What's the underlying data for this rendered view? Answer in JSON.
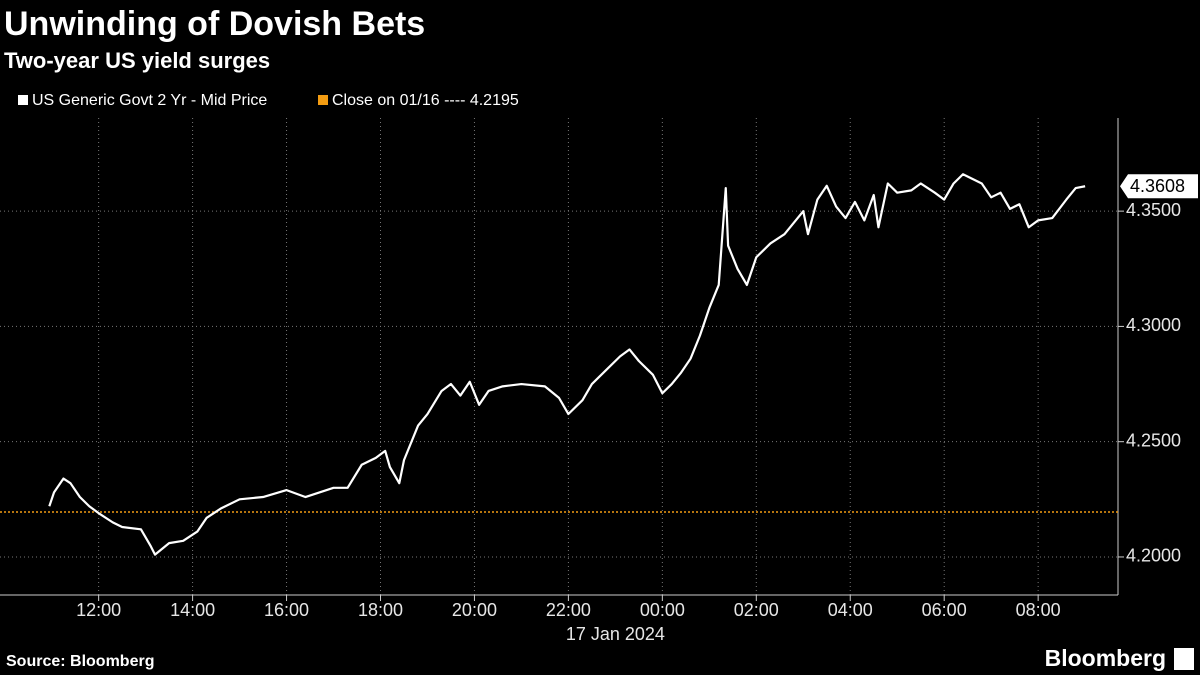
{
  "chart_data": {
    "type": "line",
    "title": "Unwinding of Dovish Bets",
    "subtitle": "Two-year US yield surges",
    "source": "Source: Bloomberg",
    "brand": "Bloomberg",
    "date_label": "17 Jan 2024",
    "x": [
      10.95,
      11.05,
      11.25,
      11.4,
      11.6,
      11.8,
      12.0,
      12.3,
      12.5,
      12.9,
      13.1,
      13.2,
      13.5,
      13.8,
      14.1,
      14.3,
      14.6,
      15.0,
      15.5,
      16.0,
      16.4,
      16.7,
      17.0,
      17.3,
      17.6,
      17.9,
      18.1,
      18.2,
      18.4,
      18.5,
      18.8,
      19.0,
      19.3,
      19.5,
      19.7,
      19.9,
      20.1,
      20.3,
      20.6,
      21.0,
      21.5,
      21.8,
      22.0,
      22.3,
      22.5,
      22.8,
      23.1,
      23.3,
      23.5,
      23.8,
      24.0,
      24.2,
      24.4,
      24.6,
      24.8,
      25.0,
      25.2,
      25.35,
      25.4,
      25.6,
      25.8,
      26.0,
      26.3,
      26.6,
      26.8,
      27.0,
      27.1,
      27.3,
      27.5,
      27.7,
      27.9,
      28.1,
      28.3,
      28.5,
      28.6,
      28.8,
      29.0,
      29.3,
      29.5,
      29.8,
      30.0,
      30.2,
      30.4,
      30.6,
      30.8,
      31.0,
      31.2,
      31.4,
      31.6,
      31.8,
      32.0,
      32.3,
      32.6,
      32.8,
      33.0
    ],
    "series": [
      {
        "name": "US Generic Govt 2 Yr - Mid Price",
        "color": "#ffffff",
        "values": [
          4.222,
          4.228,
          4.234,
          4.232,
          4.226,
          4.222,
          4.219,
          4.215,
          4.213,
          4.212,
          4.205,
          4.201,
          4.206,
          4.207,
          4.211,
          4.217,
          4.221,
          4.225,
          4.226,
          4.229,
          4.226,
          4.228,
          4.23,
          4.23,
          4.24,
          4.243,
          4.246,
          4.239,
          4.232,
          4.242,
          4.257,
          4.262,
          4.272,
          4.275,
          4.27,
          4.276,
          4.266,
          4.272,
          4.274,
          4.275,
          4.274,
          4.269,
          4.262,
          4.268,
          4.275,
          4.281,
          4.287,
          4.29,
          4.285,
          4.279,
          4.271,
          4.275,
          4.28,
          4.286,
          4.296,
          4.308,
          4.318,
          4.36,
          4.335,
          4.325,
          4.318,
          4.33,
          4.336,
          4.34,
          4.345,
          4.35,
          4.34,
          4.355,
          4.361,
          4.352,
          4.347,
          4.354,
          4.346,
          4.357,
          4.343,
          4.362,
          4.358,
          4.359,
          4.362,
          4.358,
          4.355,
          4.362,
          4.366,
          4.364,
          4.362,
          4.356,
          4.358,
          4.351,
          4.353,
          4.343,
          4.346,
          4.347,
          4.355,
          4.36,
          4.3608
        ]
      }
    ],
    "reference_line": {
      "name": "Close on 01/16 ---- 4.2195",
      "value": 4.2195,
      "color": "#f39c12"
    },
    "xlim": [
      9.9,
      33.7
    ],
    "xticks": [
      {
        "value": 12,
        "label": "12:00"
      },
      {
        "value": 14,
        "label": "14:00"
      },
      {
        "value": 16,
        "label": "16:00"
      },
      {
        "value": 18,
        "label": "18:00"
      },
      {
        "value": 20,
        "label": "20:00"
      },
      {
        "value": 22,
        "label": "22:00"
      },
      {
        "value": 24,
        "label": "00:00"
      },
      {
        "value": 26,
        "label": "02:00"
      },
      {
        "value": 28,
        "label": "04:00"
      },
      {
        "value": 30,
        "label": "06:00"
      },
      {
        "value": 32,
        "label": "08:00"
      }
    ],
    "ylim": [
      4.1835,
      4.3904
    ],
    "yticks": [
      {
        "value": 4.2,
        "label": "4.2000"
      },
      {
        "value": 4.25,
        "label": "4.2500"
      },
      {
        "value": 4.3,
        "label": "4.3000"
      },
      {
        "value": 4.35,
        "label": "4.3500"
      }
    ],
    "grid": true
  }
}
